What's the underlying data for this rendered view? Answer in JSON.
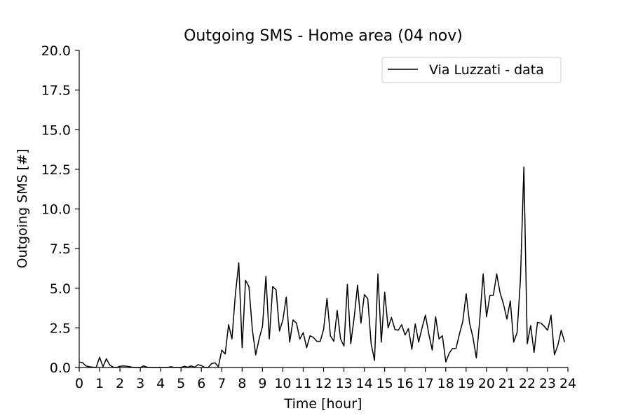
{
  "chart_data": {
    "type": "line",
    "title": "Outgoing SMS - Home area (04 nov)",
    "xlabel": "Time [hour]",
    "ylabel": "Outgoing SMS [#]",
    "xlim": [
      0,
      24
    ],
    "ylim": [
      0,
      20
    ],
    "x_ticks": [
      "0",
      "1",
      "2",
      "3",
      "4",
      "5",
      "6",
      "7",
      "8",
      "9",
      "10",
      "11",
      "12",
      "13",
      "14",
      "15",
      "16",
      "17",
      "18",
      "19",
      "20",
      "21",
      "22",
      "23",
      "24"
    ],
    "y_ticks": [
      "0.0",
      "2.5",
      "5.0",
      "7.5",
      "10.0",
      "12.5",
      "15.0",
      "17.5",
      "20.0"
    ],
    "grid": false,
    "legend_position": "top-right",
    "series": [
      {
        "name": "Via Luzzati - data",
        "color": "#000000",
        "x_step": 0.1667,
        "values": [
          0.35,
          0.3,
          0.1,
          0.05,
          0.02,
          0.0,
          0.65,
          0.05,
          0.55,
          0.15,
          0.02,
          0.0,
          0.08,
          0.1,
          0.08,
          0.05,
          0.0,
          0.0,
          0.0,
          0.1,
          0.02,
          0.0,
          0.0,
          0.0,
          0.0,
          0.0,
          0.0,
          0.05,
          0.0,
          0.0,
          0.0,
          0.08,
          0.02,
          0.1,
          0.02,
          0.18,
          0.12,
          0.0,
          0.0,
          0.25,
          0.3,
          0.05,
          1.1,
          0.85,
          2.7,
          1.8,
          4.6,
          6.6,
          1.25,
          5.5,
          5.1,
          2.4,
          0.8,
          1.8,
          2.6,
          5.75,
          1.8,
          5.1,
          4.9,
          2.3,
          3.0,
          4.45,
          1.6,
          3.0,
          2.8,
          1.8,
          2.2,
          1.25,
          2.0,
          1.9,
          1.65,
          1.65,
          2.4,
          4.35,
          2.0,
          1.65,
          3.6,
          1.8,
          1.35,
          5.25,
          1.5,
          3.15,
          5.2,
          2.8,
          4.6,
          4.35,
          1.5,
          0.45,
          5.9,
          1.6,
          4.75,
          2.5,
          3.15,
          2.4,
          2.35,
          2.7,
          2.05,
          2.45,
          1.15,
          2.75,
          1.6,
          2.5,
          3.3,
          2.1,
          1.1,
          3.2,
          1.8,
          2.0,
          0.35,
          0.9,
          1.2,
          1.2,
          2.1,
          2.9,
          4.65,
          2.8,
          1.9,
          0.6,
          3.0,
          5.9,
          3.2,
          4.55,
          4.55,
          5.9,
          4.7,
          4.0,
          3.05,
          4.2,
          1.6,
          2.2,
          5.6,
          12.65,
          1.5,
          2.65,
          0.95,
          2.85,
          2.8,
          2.6,
          2.35,
          3.3,
          0.8,
          1.4,
          2.35,
          1.6
        ]
      }
    ]
  }
}
